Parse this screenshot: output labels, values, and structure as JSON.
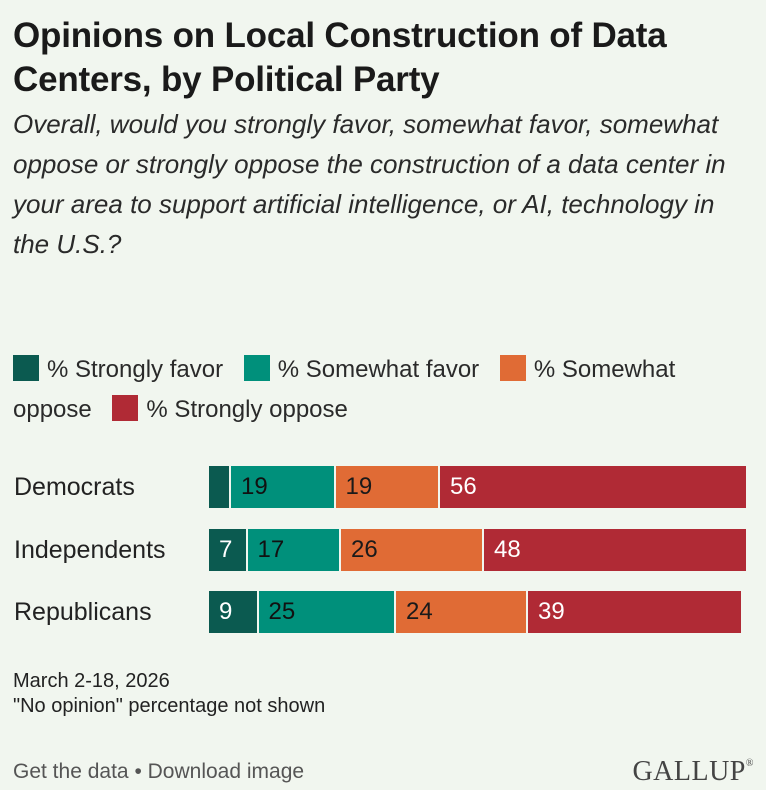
{
  "chart_data": {
    "type": "bar",
    "stacked": true,
    "orientation": "horizontal",
    "title": "Opinions on Local Construction of Data Centers, by Political Party",
    "subtitle": "Overall, would you strongly favor, somewhat favor, somewhat oppose or strongly oppose the construction of a data center in your area to support artificial intelligence, or AI, technology in the U.S.?",
    "categories": [
      "Democrats",
      "Independents",
      "Republicans"
    ],
    "series": [
      {
        "name": "% Strongly favor",
        "color": "#0b5a50",
        "values": [
          4,
          7,
          9
        ],
        "labels": [
          "",
          "7",
          "9"
        ]
      },
      {
        "name": "% Somewhat favor",
        "color": "#00907b",
        "values": [
          19,
          17,
          25
        ],
        "labels": [
          "19",
          "17",
          "25"
        ]
      },
      {
        "name": "% Somewhat oppose",
        "color": "#e06b35",
        "values": [
          19,
          26,
          24
        ],
        "labels": [
          "19",
          "26",
          "24"
        ]
      },
      {
        "name": "% Strongly oppose",
        "color": "#b02a35",
        "values": [
          56,
          48,
          39
        ],
        "labels": [
          "56",
          "48",
          "39"
        ]
      }
    ],
    "xlim": [
      0,
      100
    ],
    "legend_position": "top",
    "grid": false
  },
  "notes": {
    "dates": "March 2-18, 2026",
    "no_opinion": "\"No opinion\" percentage not shown"
  },
  "footer": {
    "get_data": "Get the data",
    "separator": "•",
    "download": "Download image",
    "brand": "GALLUP"
  }
}
